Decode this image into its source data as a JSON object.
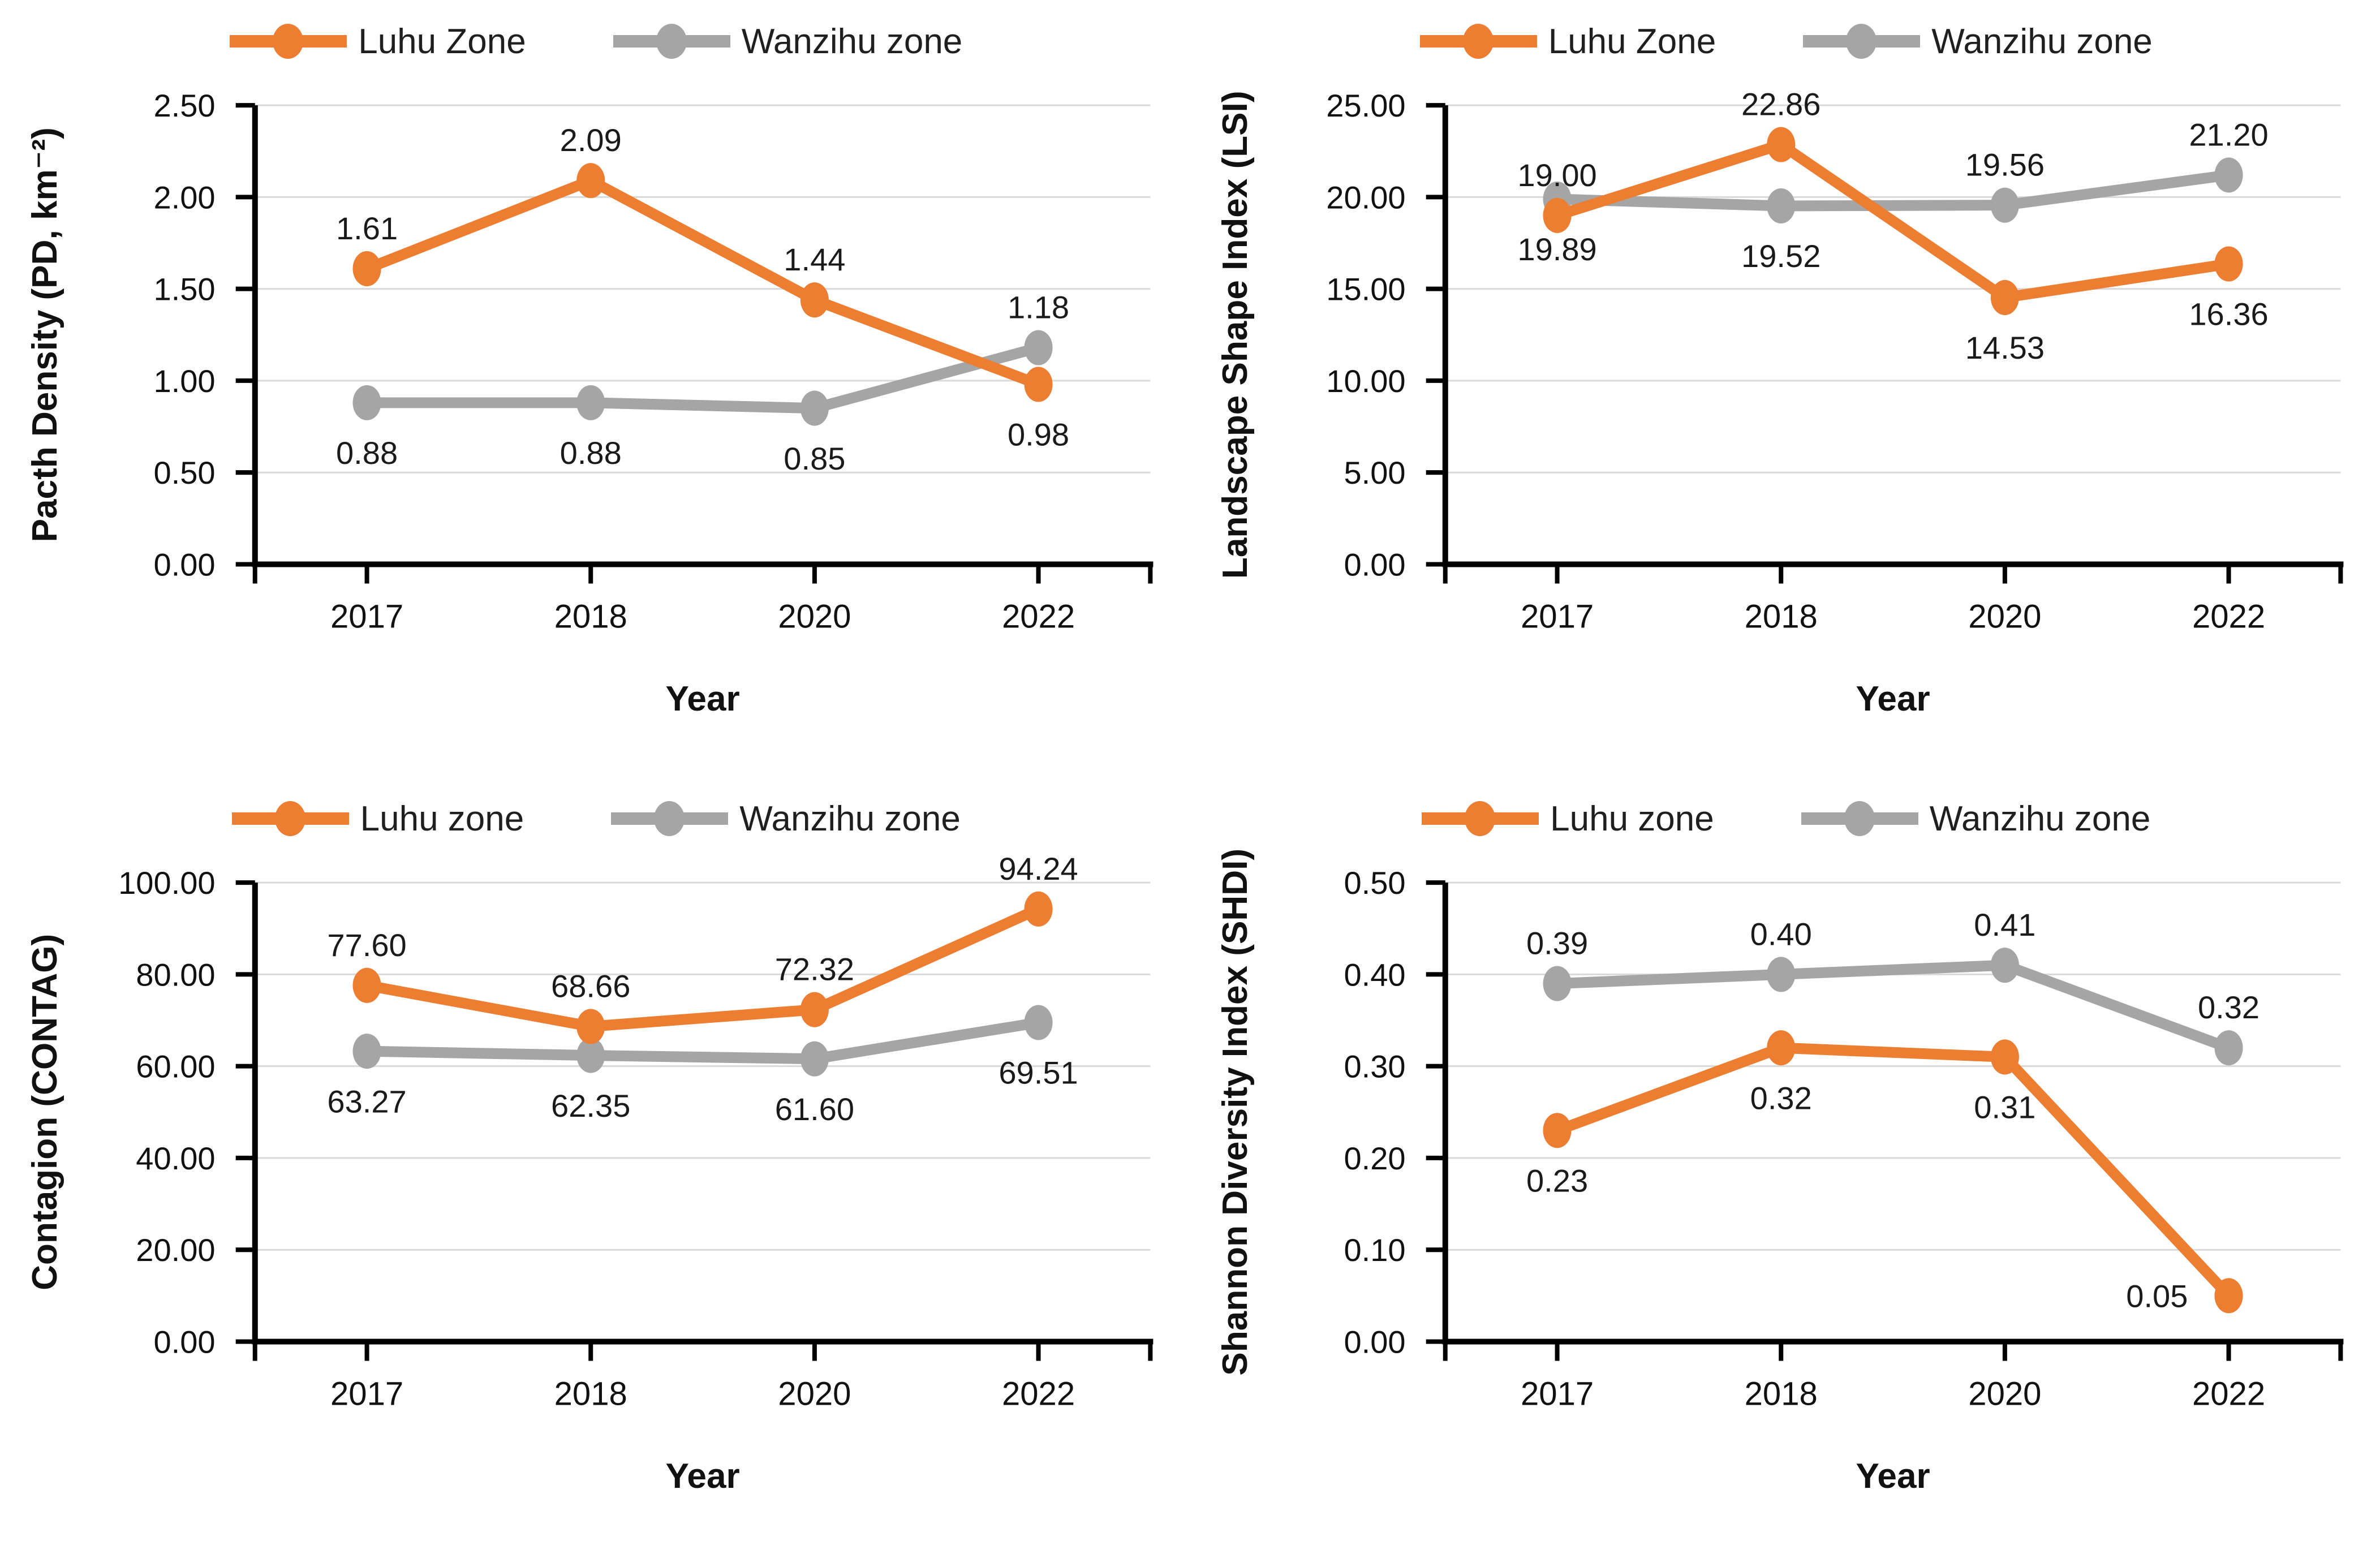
{
  "figure_colors": {
    "luhu_orange": "#ED7D31",
    "wanzihu_gray": "#A5A5A5",
    "gridline": "#D9D9D9",
    "axis": "#000000",
    "text": "#1A1A1A"
  },
  "chart_data": [
    {
      "type": "line",
      "position": "top-left",
      "title": "",
      "ylabel": "Pacth Density (PD, km⁻²)",
      "xlabel": "Year",
      "categories": [
        "2017",
        "2018",
        "2020",
        "2022"
      ],
      "ylim": [
        0,
        2.5
      ],
      "ystep": 0.5,
      "ytick_labels": [
        "0.00",
        "0.50",
        "1.00",
        "1.50",
        "2.00",
        "2.50"
      ],
      "grid": true,
      "legend_position": "top",
      "marker": "circle",
      "series": [
        {
          "name": "Luhu Zone",
          "color": "#ED7D31",
          "values": [
            1.61,
            2.09,
            1.44,
            0.98
          ],
          "labels": [
            "1.61",
            "2.09",
            "1.44",
            "0.98"
          ],
          "label_pos": [
            "above",
            "above",
            "above",
            "below"
          ]
        },
        {
          "name": "Wanzihu zone",
          "color": "#A5A5A5",
          "values": [
            0.88,
            0.88,
            0.85,
            1.18
          ],
          "labels": [
            "0.88",
            "0.88",
            "0.85",
            "1.18"
          ],
          "label_pos": [
            "below",
            "below",
            "below",
            "above"
          ]
        }
      ]
    },
    {
      "type": "line",
      "position": "top-right",
      "title": "",
      "ylabel": "Landscape Shape Index (LSI)",
      "xlabel": "Year",
      "categories": [
        "2017",
        "2018",
        "2020",
        "2022"
      ],
      "ylim": [
        0,
        25
      ],
      "ystep": 5,
      "ytick_labels": [
        "0.00",
        "5.00",
        "10.00",
        "15.00",
        "20.00",
        "25.00"
      ],
      "grid": true,
      "legend_position": "top",
      "marker": "circle",
      "series": [
        {
          "name": "Luhu Zone",
          "color": "#ED7D31",
          "values": [
            19.0,
            22.86,
            14.53,
            16.36
          ],
          "labels": [
            "19.00",
            "22.86",
            "14.53",
            "16.36"
          ],
          "label_pos": [
            "above",
            "above",
            "below",
            "below"
          ]
        },
        {
          "name": "Wanzihu zone",
          "color": "#A5A5A5",
          "values": [
            19.89,
            19.52,
            19.56,
            21.2
          ],
          "labels": [
            "19.89",
            "19.52",
            "19.56",
            "21.20"
          ],
          "label_pos": [
            "below",
            "below",
            "above",
            "above"
          ]
        }
      ]
    },
    {
      "type": "line",
      "position": "bottom-left",
      "title": "",
      "ylabel": "Contagion (CONTAG)",
      "xlabel": "Year",
      "categories": [
        "2017",
        "2018",
        "2020",
        "2022"
      ],
      "ylim": [
        0,
        100
      ],
      "ystep": 20,
      "ytick_labels": [
        "0.00",
        "20.00",
        "40.00",
        "60.00",
        "80.00",
        "100.00"
      ],
      "grid": true,
      "legend_position": "top",
      "marker": "circle",
      "series": [
        {
          "name": "Luhu zone",
          "color": "#ED7D31",
          "values": [
            77.6,
            68.66,
            72.32,
            94.24
          ],
          "labels": [
            "77.60",
            "68.66",
            "72.32",
            "94.24"
          ],
          "label_pos": [
            "above",
            "above",
            "above",
            "above"
          ]
        },
        {
          "name": "Wanzihu zone",
          "color": "#A5A5A5",
          "values": [
            63.27,
            62.35,
            61.6,
            69.51
          ],
          "labels": [
            "63.27",
            "62.35",
            "61.60",
            "69.51"
          ],
          "label_pos": [
            "below",
            "below",
            "below",
            "below"
          ]
        }
      ]
    },
    {
      "type": "line",
      "position": "bottom-right",
      "title": "",
      "ylabel": "Shannon Diversity Index (SHDI)",
      "xlabel": "Year",
      "categories": [
        "2017",
        "2018",
        "2020",
        "2022"
      ],
      "ylim": [
        0,
        0.5
      ],
      "ystep": 0.1,
      "ytick_labels": [
        "0.00",
        "0.10",
        "0.20",
        "0.30",
        "0.40",
        "0.50"
      ],
      "grid": true,
      "legend_position": "top",
      "marker": "circle",
      "series": [
        {
          "name": "Luhu zone",
          "color": "#ED7D31",
          "values": [
            0.23,
            0.32,
            0.31,
            0.05
          ],
          "labels": [
            "0.23",
            "0.32",
            "0.31",
            "0.05"
          ],
          "label_pos": [
            "below",
            "below",
            "below",
            "left"
          ]
        },
        {
          "name": "Wanzihu zone",
          "color": "#A5A5A5",
          "values": [
            0.39,
            0.4,
            0.41,
            0.32
          ],
          "labels": [
            "0.39",
            "0.40",
            "0.41",
            "0.32"
          ],
          "label_pos": [
            "above",
            "above",
            "above",
            "above"
          ]
        }
      ]
    }
  ]
}
